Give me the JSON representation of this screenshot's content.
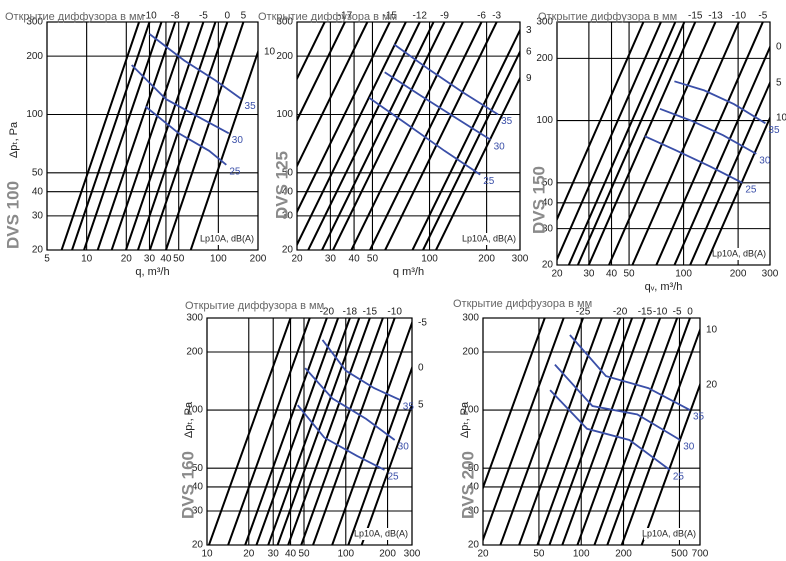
{
  "chart_data": [
    {
      "type": "nomogram",
      "title": "DVS 100",
      "header": "Открытие диффузора в мм",
      "xlabel": "q, m³/h",
      "ylabel": "Δpₜ, Pa",
      "level_label": "Lp10A, dB(A)",
      "log": true,
      "grid": true,
      "xlim": [
        5,
        200
      ],
      "xticks": [
        5,
        10,
        20,
        30,
        40,
        50,
        100,
        200
      ],
      "ylim": [
        20,
        300
      ],
      "yticks": [
        20,
        30,
        40,
        50,
        100,
        200,
        300
      ],
      "openings": {
        "color": "#000000",
        "labels": [
          null,
          -10,
          null,
          -8,
          null,
          -5,
          null,
          0,
          5,
          10
        ],
        "q_top": [
          25,
          30,
          37,
          47,
          60,
          77,
          95,
          117,
          155,
          239
        ]
      },
      "series": [
        {
          "name": "35",
          "color": "#3a4fa8",
          "x": [
            30,
            55,
            95,
            150
          ],
          "values": [
            260,
            190,
            150,
            120
          ]
        },
        {
          "name": "30",
          "color": "#3a4fa8",
          "x": [
            22,
            40,
            75,
            120
          ],
          "values": [
            180,
            120,
            95,
            80
          ]
        },
        {
          "name": "25",
          "color": "#3a4fa8",
          "x": [
            28,
            50,
            85,
            115
          ],
          "values": [
            110,
            80,
            65,
            55
          ]
        }
      ]
    },
    {
      "type": "nomogram",
      "title": "DVS 125",
      "header": "Открытие диффузора в мм",
      "xlabel": "q  m³/h",
      "level_label": "Lp10A, dB(A)",
      "log": true,
      "grid": true,
      "xlim": [
        20,
        300
      ],
      "xticks": [
        20,
        30,
        40,
        50,
        100,
        200,
        300
      ],
      "ylim": [
        20,
        300
      ],
      "yticks": [
        20,
        30,
        40,
        50,
        100,
        200,
        300
      ],
      "openings": {
        "color": "#000000",
        "labels": [
          null,
          -17,
          null,
          -15,
          null,
          -12,
          null,
          -9,
          null,
          -6,
          -3,
          3,
          6,
          9
        ],
        "q_top": [
          28,
          35.8,
          47,
          61.7,
          75,
          88.8,
          105,
          120,
          150,
          188,
          226,
          315,
          358,
          419
        ]
      },
      "series": [
        {
          "name": "35",
          "color": "#3a4fa8",
          "x": [
            65,
            100,
            150,
            230
          ],
          "values": [
            230,
            170,
            130,
            100
          ]
        },
        {
          "name": "30",
          "color": "#3a4fa8",
          "x": [
            58,
            90,
            140,
            210
          ],
          "values": [
            165,
            125,
            95,
            74
          ]
        },
        {
          "name": "25",
          "color": "#3a4fa8",
          "x": [
            48,
            75,
            120,
            185
          ],
          "values": [
            122,
            90,
            65,
            49
          ]
        }
      ]
    },
    {
      "type": "nomogram",
      "title": "DVS 150",
      "header": "Открытие диффузора в мм",
      "xlabel": "qᵥ, m³/h",
      "level_label": "Lp10A, dB(A)",
      "log": true,
      "grid": true,
      "xlim": [
        20,
        300
      ],
      "xticks": [
        20,
        30,
        40,
        50,
        100,
        200,
        300
      ],
      "ylim": [
        20,
        300
      ],
      "yticks": [
        20,
        30,
        40,
        50,
        100,
        200,
        300
      ],
      "openings": {
        "color": "#000000",
        "labels": [
          null,
          null,
          null,
          null,
          -15,
          -13,
          -10,
          -5,
          0,
          5,
          10
        ],
        "q_top": [
          60,
          75,
          90,
          101,
          116,
          150,
          202,
          274,
          345,
          421,
          512
        ]
      },
      "series": [
        {
          "name": "35",
          "color": "#3a4fa8",
          "x": [
            89,
            130,
            190,
            283
          ],
          "values": [
            155,
            140,
            120,
            97
          ]
        },
        {
          "name": "30",
          "color": "#3a4fa8",
          "x": [
            74,
            110,
            165,
            252
          ],
          "values": [
            114,
            100,
            85,
            69
          ]
        },
        {
          "name": "25",
          "color": "#3a4fa8",
          "x": [
            61,
            90,
            140,
            211
          ],
          "values": [
            84,
            72,
            60,
            50
          ]
        }
      ]
    },
    {
      "type": "nomogram",
      "title": "DVS  160",
      "header": "Открытие диффузора в мм",
      "ylabel": "Δpₜ, Pa",
      "level_label": "Lp10A, dB(A)",
      "log": true,
      "grid": true,
      "xlim": [
        10,
        300
      ],
      "xticks": [
        10,
        20,
        30,
        40,
        50,
        100,
        200,
        300
      ],
      "ylim": [
        20,
        300
      ],
      "yticks": [
        20,
        30,
        40,
        50,
        100,
        200,
        300
      ],
      "openings": {
        "color": "#000000",
        "labels": [
          null,
          null,
          -20,
          null,
          -18,
          null,
          -15,
          null,
          -10,
          -5,
          0,
          5
        ],
        "q_top": [
          40,
          55,
          73,
          88,
          107,
          125,
          149,
          185,
          225,
          309,
          404,
          504
        ]
      },
      "series": [
        {
          "name": "35",
          "color": "#3a4fa8",
          "x": [
            68,
            100,
            160,
            245
          ],
          "values": [
            231,
            160,
            130,
            113
          ]
        },
        {
          "name": "30",
          "color": "#3a4fa8",
          "x": [
            51,
            80,
            140,
            225
          ],
          "values": [
            165,
            115,
            90,
            70
          ]
        },
        {
          "name": "25",
          "color": "#3a4fa8",
          "x": [
            45,
            70,
            120,
            190
          ],
          "values": [
            106,
            72,
            58,
            49
          ]
        }
      ]
    },
    {
      "type": "nomogram",
      "title": "DVS  200",
      "header": "Открытие диффузора в мм",
      "ylabel": "Δpₜ, Pa",
      "level_label": "Lp10A, dB(A)",
      "log": true,
      "grid": true,
      "xlim": [
        20,
        700
      ],
      "xticks": [
        20,
        50,
        100,
        200,
        500,
        700
      ],
      "ylim": [
        20,
        300
      ],
      "yticks": [
        20,
        30,
        40,
        50,
        100,
        200,
        300
      ],
      "openings": {
        "color": "#000000",
        "labels": [
          null,
          null,
          -25,
          null,
          -20,
          null,
          -15,
          -10,
          -5,
          0,
          10,
          20
        ],
        "q_top": [
          55,
          75,
          103,
          140,
          189,
          230,
          284,
          364,
          481,
          594,
          752,
          1043
        ]
      },
      "series": [
        {
          "name": "35",
          "color": "#3a4fa8",
          "x": [
            83,
            150,
            300,
            594
          ],
          "values": [
            245,
            150,
            130,
            100
          ]
        },
        {
          "name": "30",
          "color": "#3a4fa8",
          "x": [
            65,
            120,
            250,
            506
          ],
          "values": [
            172,
            105,
            95,
            70
          ]
        },
        {
          "name": "25",
          "color": "#3a4fa8",
          "x": [
            60,
            110,
            220,
            427
          ],
          "values": [
            127,
            80,
            70,
            49
          ]
        }
      ]
    }
  ]
}
